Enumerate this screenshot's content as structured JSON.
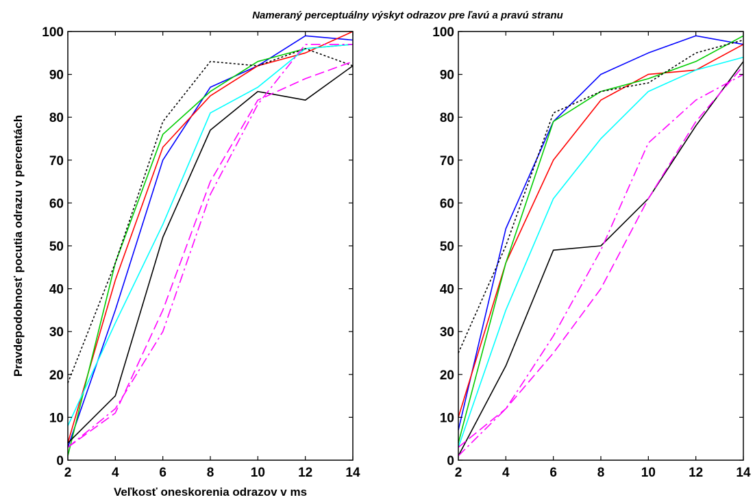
{
  "figure": {
    "title": "Nameraný perceptuálny výskyt odrazov pre ľavú a pravú stranu"
  },
  "chart_data": [
    {
      "type": "line",
      "title": "",
      "xlabel": "Veľkosť oneskorenia odrazov v ms",
      "ylabel": "Pravdepodobnosť pocutia odrazu v percentách",
      "xlim": [
        2,
        14
      ],
      "ylim": [
        0,
        100
      ],
      "xticks": [
        2,
        4,
        6,
        8,
        10,
        12,
        14
      ],
      "yticks": [
        0,
        10,
        20,
        30,
        40,
        50,
        60,
        70,
        80,
        90,
        100
      ],
      "grid": false,
      "x": [
        2,
        4,
        6,
        8,
        10,
        12,
        14
      ],
      "series": [
        {
          "color": "#0000ff",
          "style": "solid",
          "values": [
            3,
            35,
            70,
            87,
            92,
            99,
            98
          ]
        },
        {
          "color": "#ff0000",
          "style": "solid",
          "values": [
            4,
            42,
            73,
            85,
            92,
            95,
            100
          ]
        },
        {
          "color": "#00cc00",
          "style": "solid",
          "values": [
            1,
            46,
            76,
            86,
            93,
            96,
            97
          ]
        },
        {
          "color": "#00ffff",
          "style": "solid",
          "values": [
            8,
            32,
            55,
            81,
            87,
            96,
            97
          ]
        },
        {
          "color": "#000000",
          "style": "solid",
          "values": [
            4,
            15,
            52,
            77,
            86,
            84,
            92
          ]
        },
        {
          "color": "#000000",
          "style": "dotted",
          "values": [
            18,
            46,
            79,
            93,
            92,
            96,
            92
          ]
        },
        {
          "color": "#ff00ff",
          "style": "dashed",
          "values": [
            3,
            11,
            35,
            65,
            84,
            89,
            93
          ]
        },
        {
          "color": "#ff00ff",
          "style": "dashdot",
          "values": [
            3,
            12,
            30,
            62,
            83,
            97,
            97
          ]
        }
      ]
    },
    {
      "type": "line",
      "title": "",
      "xlabel": "",
      "ylabel": "",
      "xlim": [
        2,
        14
      ],
      "ylim": [
        0,
        100
      ],
      "xticks": [
        2,
        4,
        6,
        8,
        10,
        12,
        14
      ],
      "yticks": [
        0,
        10,
        20,
        30,
        40,
        50,
        60,
        70,
        80,
        90,
        100
      ],
      "grid": false,
      "x": [
        2,
        4,
        6,
        8,
        10,
        12,
        14
      ],
      "series": [
        {
          "color": "#0000ff",
          "style": "solid",
          "values": [
            7,
            54,
            79,
            90,
            95,
            99,
            97
          ]
        },
        {
          "color": "#ff0000",
          "style": "solid",
          "values": [
            10,
            46,
            70,
            84,
            90,
            91,
            97
          ]
        },
        {
          "color": "#00cc00",
          "style": "solid",
          "values": [
            4,
            46,
            79,
            86,
            89,
            93,
            99
          ]
        },
        {
          "color": "#00ffff",
          "style": "solid",
          "values": [
            3,
            35,
            61,
            75,
            86,
            91,
            94
          ]
        },
        {
          "color": "#000000",
          "style": "solid",
          "values": [
            1,
            22,
            49,
            50,
            61,
            78,
            93
          ]
        },
        {
          "color": "#000000",
          "style": "dotted",
          "values": [
            25,
            50,
            81,
            86,
            88,
            95,
            98
          ]
        },
        {
          "color": "#ff00ff",
          "style": "dashed",
          "values": [
            3,
            12,
            25,
            40,
            61,
            79,
            92
          ]
        },
        {
          "color": "#ff00ff",
          "style": "dashdot",
          "values": [
            1,
            12,
            29,
            49,
            74,
            84,
            90
          ]
        }
      ]
    }
  ]
}
